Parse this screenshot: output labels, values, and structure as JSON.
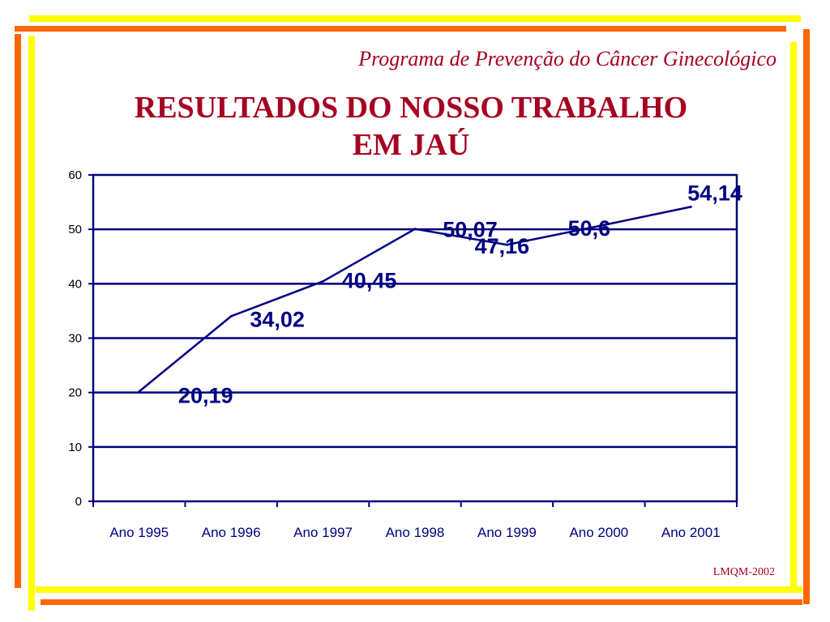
{
  "header": {
    "subtitle": "Programa de Prevenção do Câncer Ginecológico",
    "title_line1": "RESULTADOS DO NOSSO TRABALHO",
    "title_line2": "EM JAÚ"
  },
  "footer": {
    "credit": "LMQM-2002"
  },
  "colors": {
    "frame_yellow": "#ffff00",
    "frame_orange": "#ff6600",
    "title_red": "#a50021",
    "chart_navy": "#000080"
  },
  "chart_data": {
    "type": "line",
    "categories": [
      "Ano 1995",
      "Ano 1996",
      "Ano 1997",
      "Ano 1998",
      "Ano 1999",
      "Ano 2000",
      "Ano 2001"
    ],
    "series": [
      {
        "values": [
          20.19,
          34.02,
          40.45,
          50.07,
          47.16,
          50.6,
          54.14
        ]
      }
    ],
    "data_labels": [
      "20,19",
      "34,02",
      "40,45",
      "50,07",
      "47,16",
      "50,6",
      "54,14"
    ],
    "ylim": [
      0,
      60
    ],
    "yticks": [
      0,
      10,
      20,
      30,
      40,
      50,
      60
    ],
    "grid": true,
    "legend": false
  }
}
